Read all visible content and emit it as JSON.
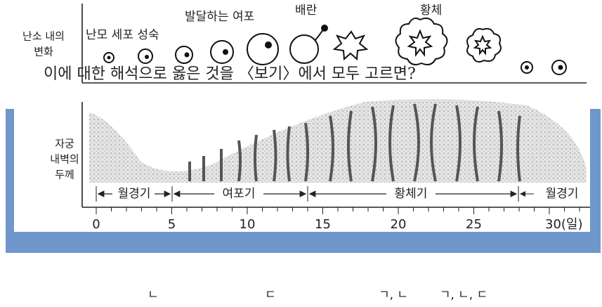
{
  "ovary": {
    "label_lines": [
      "난소 내의",
      "변화"
    ],
    "stages": [
      "난모 세포 성숙",
      "발달하는 여포",
      "배란",
      "황체"
    ]
  },
  "question": "이에 대한 해석으로 옳은 것을 〈보기〉에서 모두 고르면?",
  "uterus": {
    "label_lines": [
      "자궁",
      "내벽의",
      "두께"
    ]
  },
  "phases": [
    "월경기",
    "여포기",
    "황체기",
    "월경기"
  ],
  "axis": {
    "ticks": [
      "0",
      "5",
      "10",
      "15",
      "20",
      "25",
      "30(일)"
    ]
  },
  "choices": [
    "ㄴ",
    "ㄷ",
    "ㄱ, ㄴ",
    "ㄱ, ㄴ, ㄷ"
  ]
}
